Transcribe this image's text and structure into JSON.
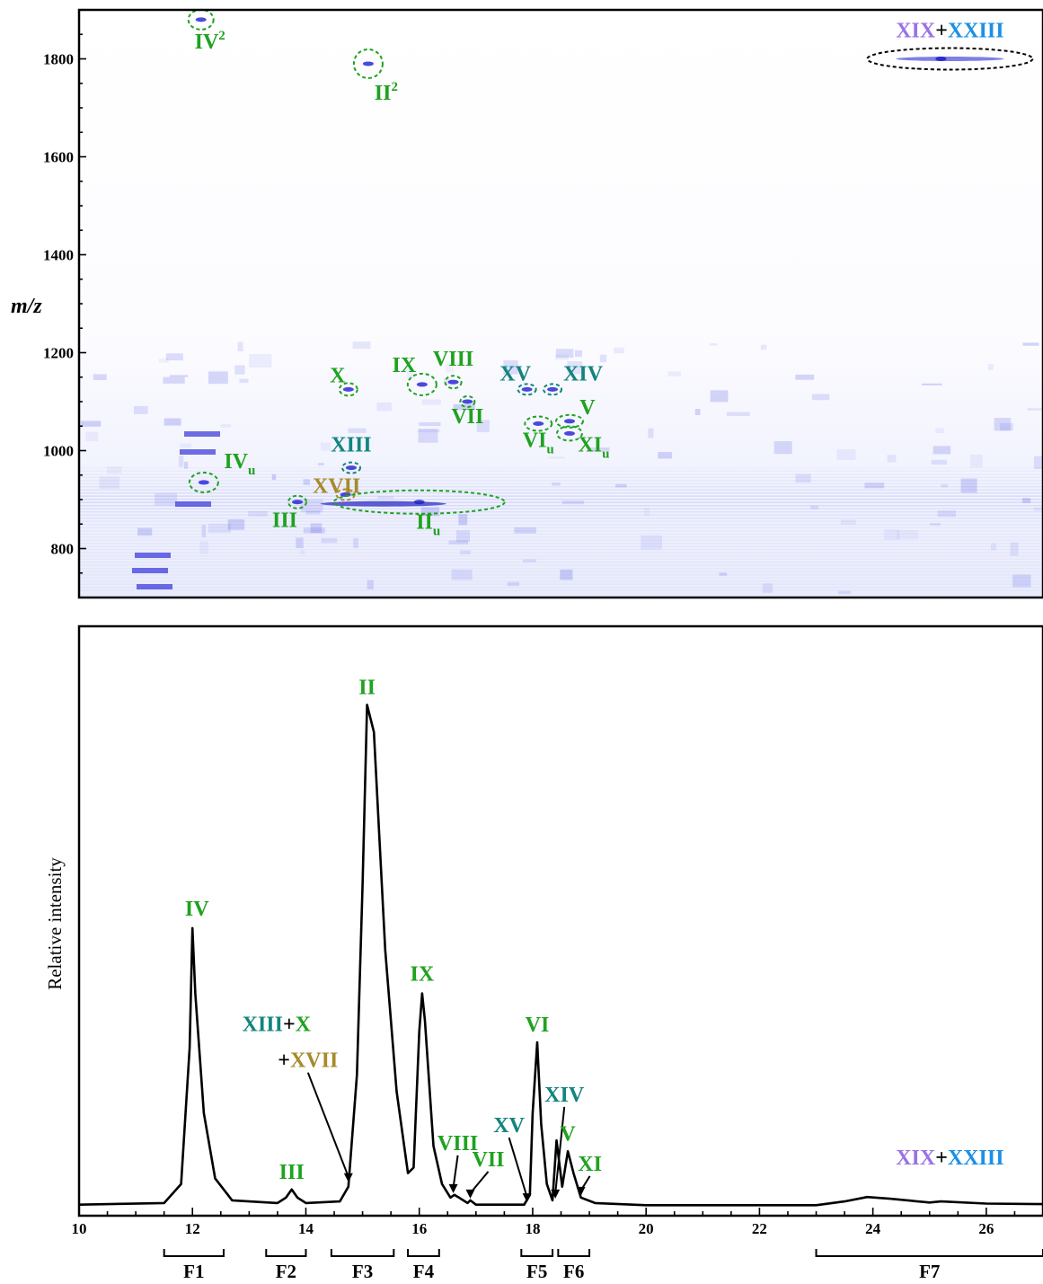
{
  "colors": {
    "green": "#1fa21f",
    "teal": "#12847e",
    "olive": "#a68a2b",
    "purple": "#9a72e6",
    "blue": "#1b8fe6",
    "black": "#000000",
    "heat": "#2a2ad6"
  },
  "chart_data": [
    {
      "type": "heatmap",
      "xlabel": "",
      "ylabel": "m/z",
      "xlim": [
        10,
        27
      ],
      "ylim": [
        700,
        1900
      ],
      "yticks": [
        "800",
        "1000",
        "1200",
        "1400",
        "1600",
        "1800"
      ],
      "grid": false,
      "points": [
        {
          "name": "IV",
          "sup": "2",
          "sub": "",
          "x": 12.15,
          "y": 1880,
          "color": "green"
        },
        {
          "name": "II",
          "sup": "2",
          "sub": "",
          "x": 15.1,
          "y": 1790,
          "color": "green"
        },
        {
          "name": "XIX",
          "sup": "",
          "sub": "",
          "x": 25.2,
          "y": 1800,
          "color": "purple"
        },
        {
          "name": "XXIII",
          "sup": "",
          "sub": "",
          "x": 25.2,
          "y": 1800,
          "color": "blue"
        },
        {
          "name": "X",
          "sup": "",
          "sub": "",
          "x": 14.75,
          "y": 1125,
          "color": "green"
        },
        {
          "name": "IX",
          "sup": "",
          "sub": "",
          "x": 16.05,
          "y": 1135,
          "color": "green"
        },
        {
          "name": "VIII",
          "sup": "",
          "sub": "",
          "x": 16.6,
          "y": 1140,
          "color": "green"
        },
        {
          "name": "VII",
          "sup": "",
          "sub": "",
          "x": 16.85,
          "y": 1100,
          "color": "green"
        },
        {
          "name": "XV",
          "sup": "",
          "sub": "",
          "x": 17.9,
          "y": 1125,
          "color": "teal"
        },
        {
          "name": "XIV",
          "sup": "",
          "sub": "",
          "x": 18.35,
          "y": 1125,
          "color": "teal"
        },
        {
          "name": "V",
          "sup": "",
          "sub": "",
          "x": 18.65,
          "y": 1060,
          "color": "green"
        },
        {
          "name": "VI",
          "sup": "",
          "sub": "u",
          "x": 18.1,
          "y": 1055,
          "color": "green"
        },
        {
          "name": "XI",
          "sup": "",
          "sub": "u",
          "x": 18.65,
          "y": 1035,
          "color": "green"
        },
        {
          "name": "XIII",
          "sup": "",
          "sub": "",
          "x": 14.8,
          "y": 965,
          "color": "teal"
        },
        {
          "name": "XVII",
          "sup": "",
          "sub": "",
          "x": 14.7,
          "y": 910,
          "color": "olive"
        },
        {
          "name": "III",
          "sup": "",
          "sub": "",
          "x": 13.85,
          "y": 895,
          "color": "green"
        },
        {
          "name": "IV",
          "sup": "",
          "sub": "u",
          "x": 12.2,
          "y": 935,
          "color": "green"
        },
        {
          "name": "II",
          "sup": "",
          "sub": "u",
          "x": 16.0,
          "y": 895,
          "color": "green"
        }
      ]
    },
    {
      "type": "line",
      "xlabel": "",
      "ylabel": "Relative intensity",
      "xlim": [
        10,
        27
      ],
      "ylim": [
        0,
        100
      ],
      "xticks": [
        "10",
        "12",
        "14",
        "16",
        "18",
        "20",
        "22",
        "24",
        "26"
      ],
      "grid": false,
      "series": [
        {
          "x": [
            10,
            11.5,
            11.8,
            11.95,
            12.0,
            12.05,
            12.2,
            12.4,
            12.7,
            13.5,
            13.65,
            13.75,
            13.85,
            14.0,
            14.6,
            14.75,
            14.9,
            15.0,
            15.08,
            15.2,
            15.4,
            15.6,
            15.8,
            15.9,
            16.0,
            16.05,
            16.1,
            16.25,
            16.4,
            16.55,
            16.62,
            16.7,
            16.85,
            16.9,
            17.0,
            17.5,
            17.85,
            17.95,
            18.0,
            18.08,
            18.15,
            18.25,
            18.35,
            18.42,
            18.52,
            18.62,
            18.72,
            18.85,
            19.1,
            20.0,
            23.0,
            23.5,
            23.9,
            24.3,
            25.0,
            25.2,
            26.0,
            27.0
          ],
          "y": [
            1.2,
            1.5,
            5,
            30,
            52,
            40,
            18,
            6,
            2,
            1.5,
            2.5,
            4,
            2.5,
            1.5,
            1.8,
            4.5,
            25,
            60,
            93,
            88,
            48,
            22,
            7,
            8,
            33,
            40,
            35,
            12,
            5,
            2.5,
            3,
            2.5,
            1.5,
            2,
            1.2,
            1.2,
            1.2,
            3,
            18,
            31,
            16,
            5,
            2,
            13,
            4.5,
            11,
            7,
            2.5,
            1.5,
            1.1,
            1.1,
            1.8,
            2.6,
            2.3,
            1.6,
            1.8,
            1.4,
            1.3
          ]
        }
      ],
      "annotations": [
        {
          "x": 12.0,
          "y": 52,
          "parts": [
            {
              "t": "IV",
              "c": "green"
            }
          ]
        },
        {
          "x": 15.08,
          "y": 93,
          "parts": [
            {
              "t": "II",
              "c": "green"
            }
          ]
        },
        {
          "x": 16.05,
          "y": 40,
          "parts": [
            {
              "t": "IX",
              "c": "green"
            }
          ]
        },
        {
          "x": 18.08,
          "y": 31,
          "parts": [
            {
              "t": "VI",
              "c": "green"
            }
          ]
        },
        {
          "x": 13.75,
          "y": 4,
          "parts": [
            {
              "t": "III",
              "c": "green"
            }
          ]
        },
        {
          "x": 16.6,
          "y": 3,
          "parts": [
            {
              "t": "VIII",
              "c": "green"
            }
          ]
        },
        {
          "x": 16.9,
          "y": 2,
          "parts": [
            {
              "t": "VII",
              "c": "green"
            }
          ]
        },
        {
          "x": 17.9,
          "y": 1.3,
          "parts": [
            {
              "t": "XV",
              "c": "teal"
            }
          ]
        },
        {
          "x": 18.4,
          "y": 2,
          "parts": [
            {
              "t": "XIV",
              "c": "teal"
            }
          ]
        },
        {
          "x": 18.62,
          "y": 11,
          "parts": [
            {
              "t": "V",
              "c": "green"
            }
          ]
        },
        {
          "x": 18.85,
          "y": 2.5,
          "parts": [
            {
              "t": "XI",
              "c": "green"
            }
          ]
        },
        {
          "x": 14.75,
          "y": 5,
          "parts": [
            {
              "t": "XIII",
              "c": "teal"
            },
            {
              "t": "+",
              "c": "black"
            },
            {
              "t": "X",
              "c": "green"
            }
          ]
        },
        {
          "x": 14.75,
          "y": 5,
          "parts": [
            {
              "t": "+",
              "c": "black"
            },
            {
              "t": "XVII",
              "c": "olive"
            }
          ]
        },
        {
          "x": 25.2,
          "y": 2,
          "parts": [
            {
              "t": "XIX",
              "c": "purple"
            },
            {
              "t": "+",
              "c": "black"
            },
            {
              "t": "XXIII",
              "c": "blue"
            }
          ]
        }
      ],
      "fractions": [
        {
          "label": "F1",
          "x0": 11.5,
          "x1": 12.55
        },
        {
          "label": "F2",
          "x0": 13.3,
          "x1": 14.0
        },
        {
          "label": "F3",
          "x0": 14.45,
          "x1": 15.55
        },
        {
          "label": "F4",
          "x0": 15.8,
          "x1": 16.35
        },
        {
          "label": "F5",
          "x0": 17.8,
          "x1": 18.35
        },
        {
          "label": "F6",
          "x0": 18.45,
          "x1": 19.0
        },
        {
          "label": "F7",
          "x0": 23.0,
          "x1": 27.0
        }
      ]
    }
  ]
}
